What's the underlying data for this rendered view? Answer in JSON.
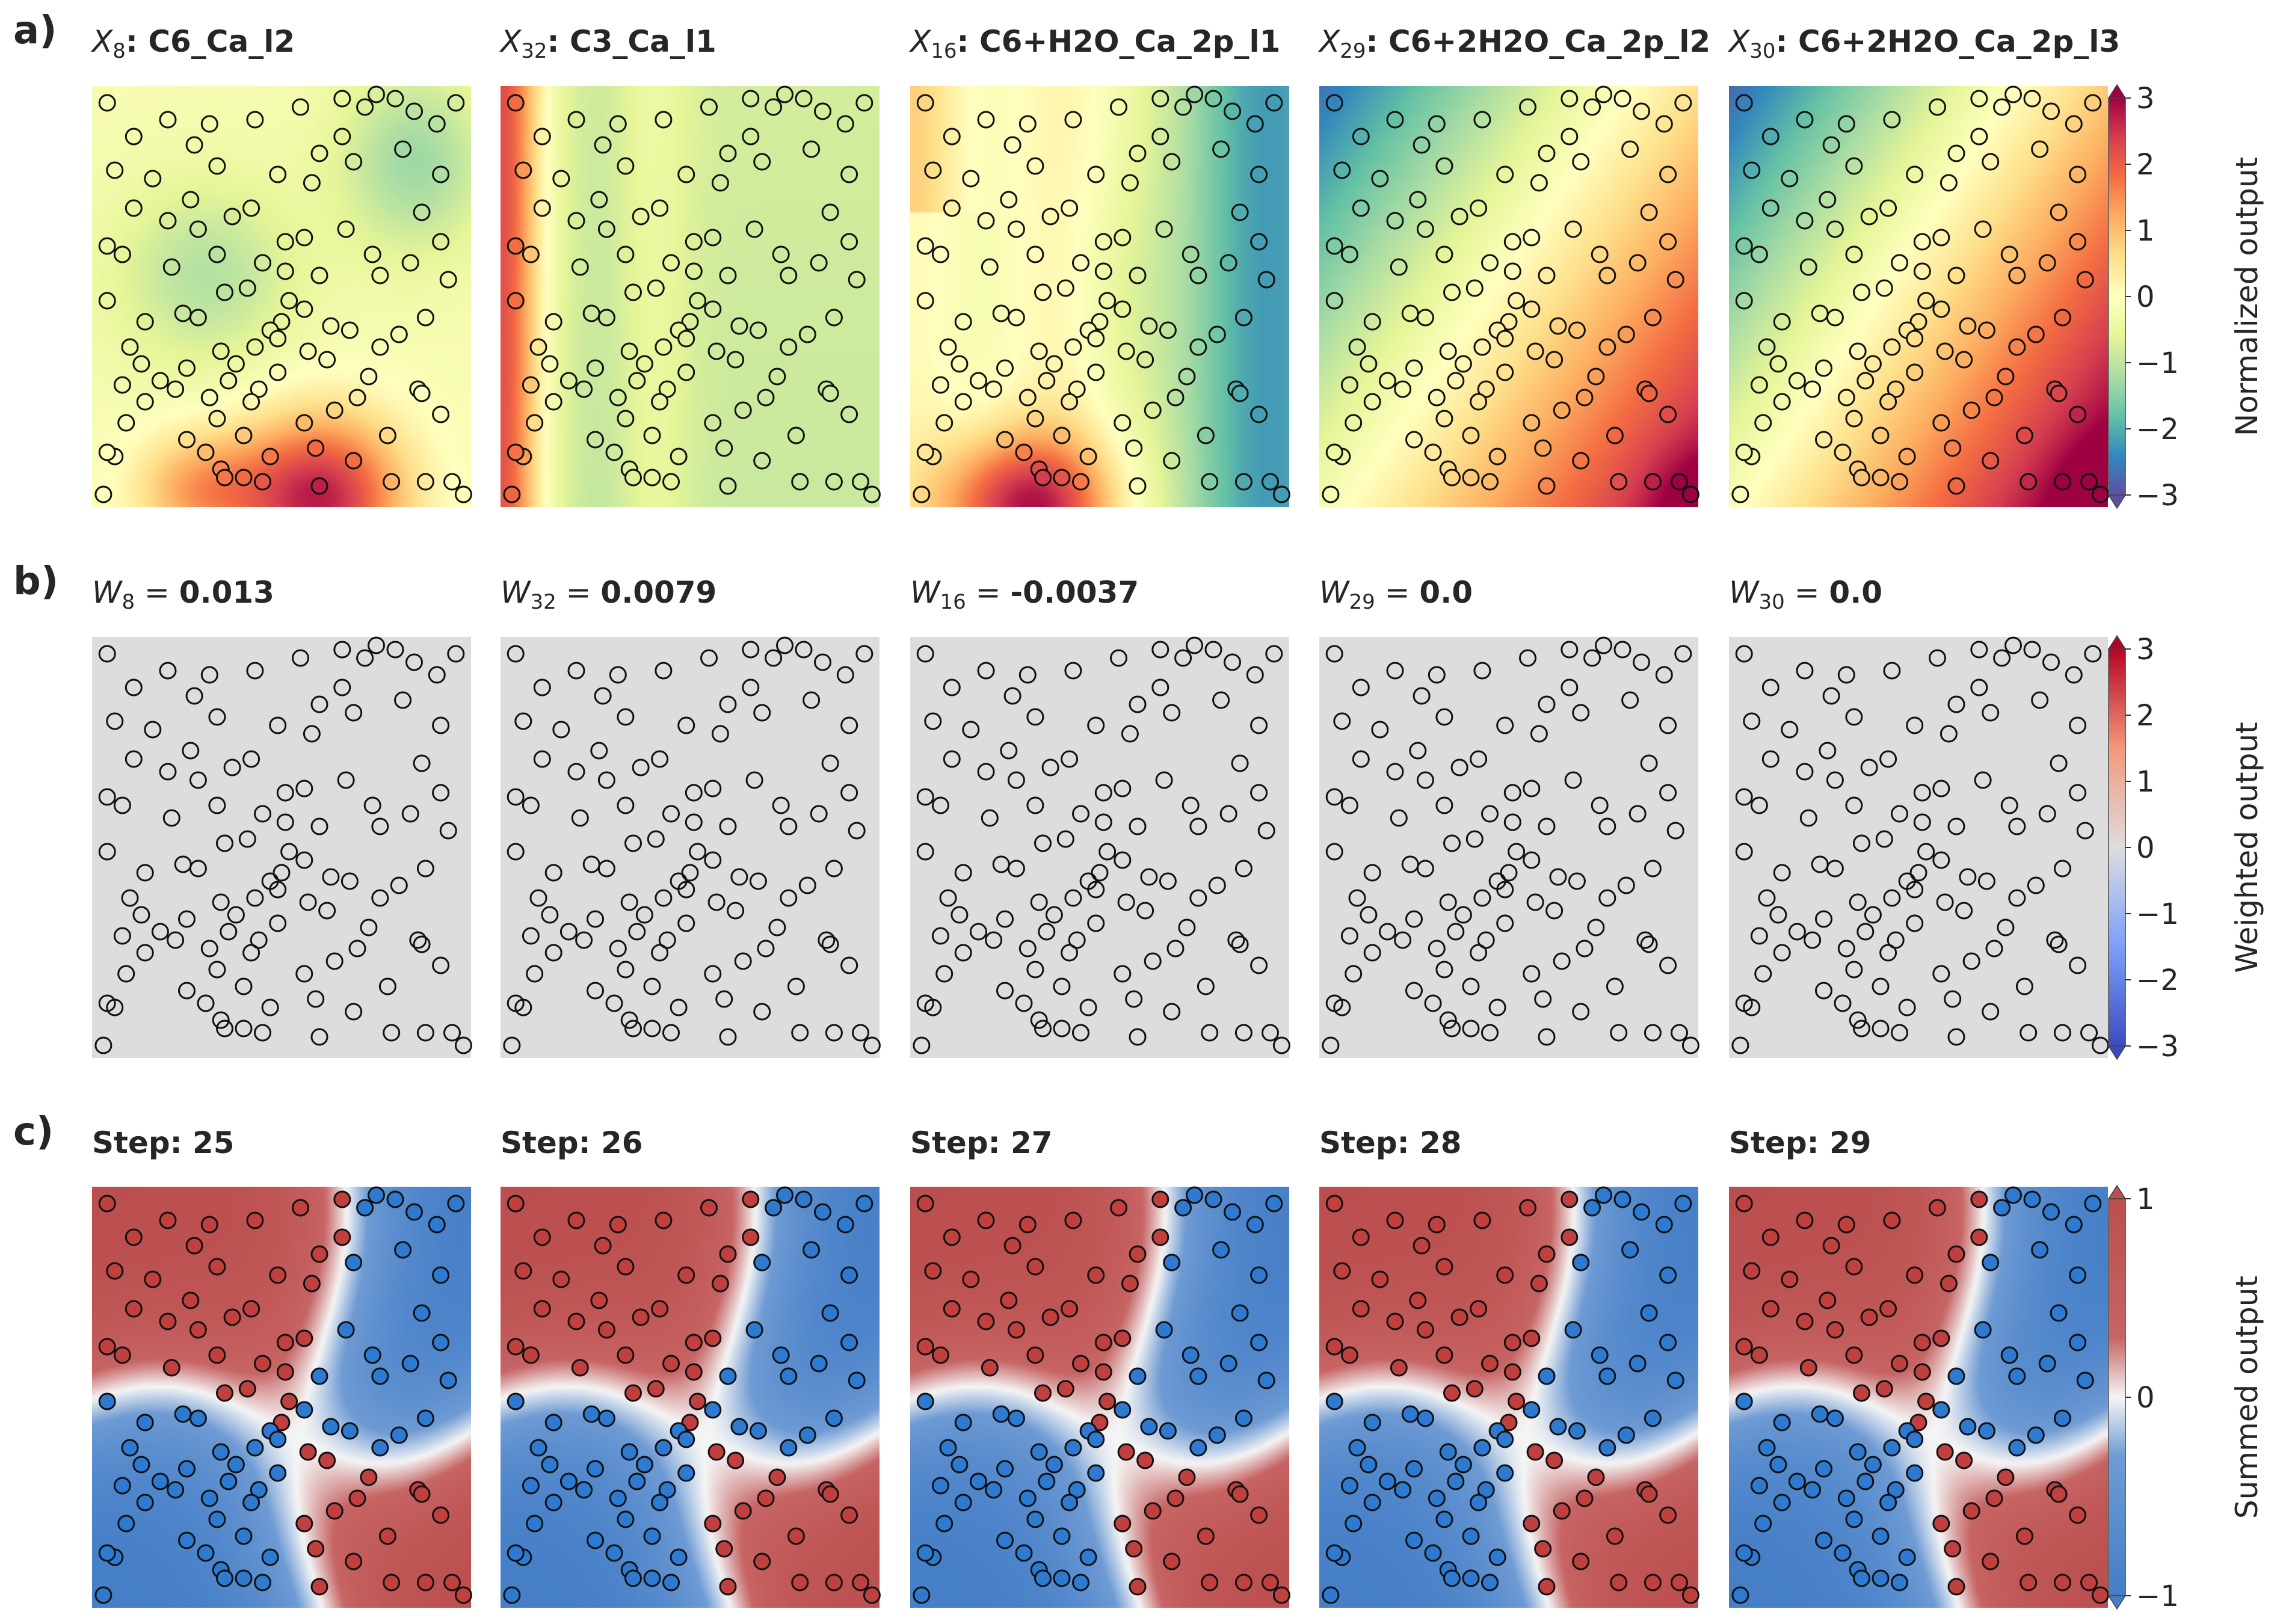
{
  "rows": [
    {
      "letter": "a)",
      "colormap": "spectral",
      "colorbar": {
        "label": "Normalized output",
        "range": [
          -3,
          3
        ],
        "ticks": [
          "3",
          "2",
          "1",
          "0",
          "−1",
          "−2",
          "−3"
        ]
      },
      "panels": [
        {
          "title_prefix": "X",
          "title_sub": "8",
          "title_sep": ": ",
          "title_value": "C6_Ca_l2",
          "field": "f8"
        },
        {
          "title_prefix": "X",
          "title_sub": "32",
          "title_sep": ": ",
          "title_value": "C3_Ca_l1",
          "field": "f32"
        },
        {
          "title_prefix": "X",
          "title_sub": "16",
          "title_sep": ": ",
          "title_value": "C6+H2O_Ca_2p_l1",
          "field": "f16"
        },
        {
          "title_prefix": "X",
          "title_sub": "29",
          "title_sep": ": ",
          "title_value": "C6+2H2O_Ca_2p_l2",
          "field": "f29"
        },
        {
          "title_prefix": "X",
          "title_sub": "30",
          "title_sep": ": ",
          "title_value": "C6+2H2O_Ca_2p_l3",
          "field": "f30"
        }
      ]
    },
    {
      "letter": "b)",
      "colormap": "coolwarm",
      "colorbar": {
        "label": "Weighted output",
        "range": [
          -3,
          3
        ],
        "ticks": [
          "3",
          "2",
          "1",
          "0",
          "−1",
          "−2",
          "−3"
        ]
      },
      "panels": [
        {
          "title_prefix": "W",
          "title_sub": "8",
          "title_sep": " = ",
          "title_value": "0.013",
          "field": "zero"
        },
        {
          "title_prefix": "W",
          "title_sub": "32",
          "title_sep": " = ",
          "title_value": "0.0079",
          "field": "zero"
        },
        {
          "title_prefix": "W",
          "title_sub": "16",
          "title_sep": " = ",
          "title_value": "-0.0037",
          "field": "zero"
        },
        {
          "title_prefix": "W",
          "title_sub": "29",
          "title_sep": " = ",
          "title_value": "0.0",
          "field": "zero"
        },
        {
          "title_prefix": "W",
          "title_sub": "30",
          "title_sep": " = ",
          "title_value": "0.0",
          "field": "zero"
        }
      ]
    },
    {
      "letter": "c)",
      "colormap": "redblue",
      "colorbar": {
        "label": "Summed output",
        "range": [
          -1,
          1
        ],
        "ticks": [
          "1",
          "0",
          "−1"
        ]
      },
      "panels": [
        {
          "title_value": "Step: 25",
          "field": "sum"
        },
        {
          "title_value": "Step: 26",
          "field": "sum"
        },
        {
          "title_value": "Step: 27",
          "field": "sum"
        },
        {
          "title_value": "Step: 28",
          "field": "sum"
        },
        {
          "title_value": "Step: 29",
          "field": "sum"
        }
      ]
    }
  ],
  "chart_data": {
    "type": "heatmap",
    "description_of_axes": "unitless 2D input domain, x and y in [0,1]",
    "points": [
      [
        0.04,
        0.96
      ],
      [
        0.11,
        0.88
      ],
      [
        0.2,
        0.92
      ],
      [
        0.27,
        0.86
      ],
      [
        0.06,
        0.8
      ],
      [
        0.16,
        0.78
      ],
      [
        0.26,
        0.73
      ],
      [
        0.33,
        0.81
      ],
      [
        0.43,
        0.92
      ],
      [
        0.55,
        0.95
      ],
      [
        0.66,
        0.97
      ],
      [
        0.72,
        0.95
      ],
      [
        0.75,
        0.98
      ],
      [
        0.8,
        0.97
      ],
      [
        0.85,
        0.94
      ],
      [
        0.91,
        0.91
      ],
      [
        0.96,
        0.96
      ],
      [
        0.66,
        0.88
      ],
      [
        0.69,
        0.82
      ],
      [
        0.82,
        0.85
      ],
      [
        0.92,
        0.79
      ],
      [
        0.87,
        0.7
      ],
      [
        0.6,
        0.84
      ],
      [
        0.58,
        0.77
      ],
      [
        0.49,
        0.79
      ],
      [
        0.42,
        0.71
      ],
      [
        0.37,
        0.69
      ],
      [
        0.28,
        0.66
      ],
      [
        0.2,
        0.68
      ],
      [
        0.11,
        0.71
      ],
      [
        0.04,
        0.62
      ],
      [
        0.08,
        0.6
      ],
      [
        0.21,
        0.57
      ],
      [
        0.33,
        0.6
      ],
      [
        0.45,
        0.58
      ],
      [
        0.51,
        0.63
      ],
      [
        0.56,
        0.64
      ],
      [
        0.67,
        0.66
      ],
      [
        0.74,
        0.6
      ],
      [
        0.76,
        0.55
      ],
      [
        0.84,
        0.58
      ],
      [
        0.92,
        0.63
      ],
      [
        0.94,
        0.54
      ],
      [
        0.88,
        0.45
      ],
      [
        0.81,
        0.41
      ],
      [
        0.76,
        0.38
      ],
      [
        0.68,
        0.42
      ],
      [
        0.63,
        0.43
      ],
      [
        0.56,
        0.47
      ],
      [
        0.52,
        0.49
      ],
      [
        0.5,
        0.44
      ],
      [
        0.47,
        0.42
      ],
      [
        0.41,
        0.52
      ],
      [
        0.35,
        0.51
      ],
      [
        0.28,
        0.45
      ],
      [
        0.24,
        0.46
      ],
      [
        0.14,
        0.44
      ],
      [
        0.04,
        0.49
      ],
      [
        0.1,
        0.38
      ],
      [
        0.13,
        0.34
      ],
      [
        0.25,
        0.33
      ],
      [
        0.34,
        0.37
      ],
      [
        0.38,
        0.34
      ],
      [
        0.43,
        0.38
      ],
      [
        0.49,
        0.4
      ],
      [
        0.57,
        0.37
      ],
      [
        0.62,
        0.35
      ],
      [
        0.73,
        0.31
      ],
      [
        0.86,
        0.28
      ],
      [
        0.87,
        0.27
      ],
      [
        0.92,
        0.22
      ],
      [
        0.78,
        0.17
      ],
      [
        0.69,
        0.11
      ],
      [
        0.59,
        0.14
      ],
      [
        0.47,
        0.12
      ],
      [
        0.4,
        0.17
      ],
      [
        0.33,
        0.21
      ],
      [
        0.31,
        0.26
      ],
      [
        0.36,
        0.3
      ],
      [
        0.22,
        0.28
      ],
      [
        0.14,
        0.25
      ],
      [
        0.09,
        0.2
      ],
      [
        0.06,
        0.12
      ],
      [
        0.04,
        0.13
      ],
      [
        0.03,
        0.03
      ],
      [
        0.25,
        0.16
      ],
      [
        0.3,
        0.13
      ],
      [
        0.34,
        0.09
      ],
      [
        0.35,
        0.07
      ],
      [
        0.4,
        0.07
      ],
      [
        0.45,
        0.06
      ],
      [
        0.6,
        0.05
      ],
      [
        0.79,
        0.06
      ],
      [
        0.88,
        0.06
      ],
      [
        0.95,
        0.06
      ],
      [
        0.98,
        0.03
      ],
      [
        0.56,
        0.2
      ],
      [
        0.64,
        0.23
      ],
      [
        0.7,
        0.26
      ],
      [
        0.49,
        0.32
      ],
      [
        0.44,
        0.28
      ],
      [
        0.42,
        0.25
      ],
      [
        0.18,
        0.3
      ],
      [
        0.08,
        0.29
      ],
      [
        0.51,
        0.56
      ],
      [
        0.6,
        0.55
      ],
      [
        0.31,
        0.91
      ]
    ]
  }
}
